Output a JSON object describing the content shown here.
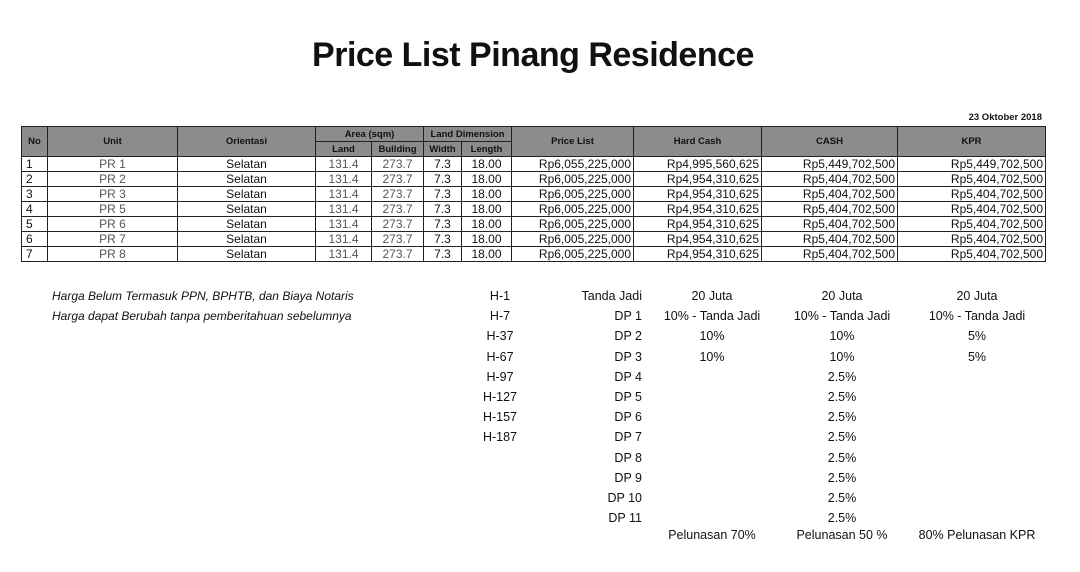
{
  "title": "Price List Pinang Residence",
  "date": "23 Oktober 2018",
  "table": {
    "headers": {
      "no": "No",
      "unit": "Unit",
      "orientasi": "Orientasi",
      "area": "Area (sqm)",
      "land": "Land",
      "building": "Building",
      "land_dimension": "Land Dimension",
      "width": "Width",
      "length": "Length",
      "price_list": "Price List",
      "hard_cash": "Hard Cash",
      "cash": "CASH",
      "kpr": "KPR"
    },
    "rows": [
      {
        "no": "1",
        "unit": "PR 1",
        "orientasi": "Selatan",
        "land": "131.4",
        "building": "273.7",
        "width": "7.3",
        "length": "18.00",
        "price_list": "Rp6,055,225,000",
        "hard_cash": "Rp4,995,560,625",
        "cash": "Rp5,449,702,500",
        "kpr": "Rp5,449,702,500"
      },
      {
        "no": "2",
        "unit": "PR 2",
        "orientasi": "Selatan",
        "land": "131.4",
        "building": "273.7",
        "width": "7.3",
        "length": "18.00",
        "price_list": "Rp6,005,225,000",
        "hard_cash": "Rp4,954,310,625",
        "cash": "Rp5,404,702,500",
        "kpr": "Rp5,404,702,500"
      },
      {
        "no": "3",
        "unit": "PR 3",
        "orientasi": "Selatan",
        "land": "131.4",
        "building": "273.7",
        "width": "7.3",
        "length": "18.00",
        "price_list": "Rp6,005,225,000",
        "hard_cash": "Rp4,954,310,625",
        "cash": "Rp5,404,702,500",
        "kpr": "Rp5,404,702,500"
      },
      {
        "no": "4",
        "unit": "PR 5",
        "orientasi": "Selatan",
        "land": "131.4",
        "building": "273.7",
        "width": "7.3",
        "length": "18.00",
        "price_list": "Rp6,005,225,000",
        "hard_cash": "Rp4,954,310,625",
        "cash": "Rp5,404,702,500",
        "kpr": "Rp5,404,702,500"
      },
      {
        "no": "5",
        "unit": "PR 6",
        "orientasi": "Selatan",
        "land": "131.4",
        "building": "273.7",
        "width": "7.3",
        "length": "18.00",
        "price_list": "Rp6,005,225,000",
        "hard_cash": "Rp4,954,310,625",
        "cash": "Rp5,404,702,500",
        "kpr": "Rp5,404,702,500"
      },
      {
        "no": "6",
        "unit": "PR 7",
        "orientasi": "Selatan",
        "land": "131.4",
        "building": "273.7",
        "width": "7.3",
        "length": "18.00",
        "price_list": "Rp6,005,225,000",
        "hard_cash": "Rp4,954,310,625",
        "cash": "Rp5,404,702,500",
        "kpr": "Rp5,404,702,500"
      },
      {
        "no": "7",
        "unit": "PR 8",
        "orientasi": "Selatan",
        "land": "131.4",
        "building": "273.7",
        "width": "7.3",
        "length": "18.00",
        "price_list": "Rp6,005,225,000",
        "hard_cash": "Rp4,954,310,625",
        "cash": "Rp5,404,702,500",
        "kpr": "Rp5,404,702,500"
      }
    ]
  },
  "notes": [
    "Harga Belum Termasuk PPN, BPHTB, dan Biaya Notaris",
    "Harga dapat Berubah tanpa pemberitahuan sebelumnya"
  ],
  "schedule": {
    "h": [
      "H-1",
      "H-7",
      "H-37",
      "H-67",
      "H-97",
      "H-127",
      "H-157",
      "H-187"
    ],
    "dp": [
      "Tanda Jadi",
      "DP 1",
      "DP 2",
      "DP 3",
      "DP 4",
      "DP 5",
      "DP 6",
      "DP 7",
      "DP 8",
      "DP 9",
      "DP 10",
      "DP 11"
    ],
    "hard_cash": [
      "20 Juta",
      "10% - Tanda Jadi",
      "10%",
      "10%"
    ],
    "cash": [
      "20 Juta",
      "10% - Tanda Jadi",
      "10%",
      "10%",
      "2.5%",
      "2.5%",
      "2.5%",
      "2.5%",
      "2.5%",
      "2.5%",
      "2.5%",
      "2.5%"
    ],
    "kpr": [
      "20 Juta",
      "10% - Tanda Jadi",
      "5%",
      "5%"
    ],
    "footer": {
      "hard_cash": "Pelunasan 70%",
      "cash": "Pelunasan 50 %",
      "kpr": "80% Pelunasan KPR"
    }
  }
}
